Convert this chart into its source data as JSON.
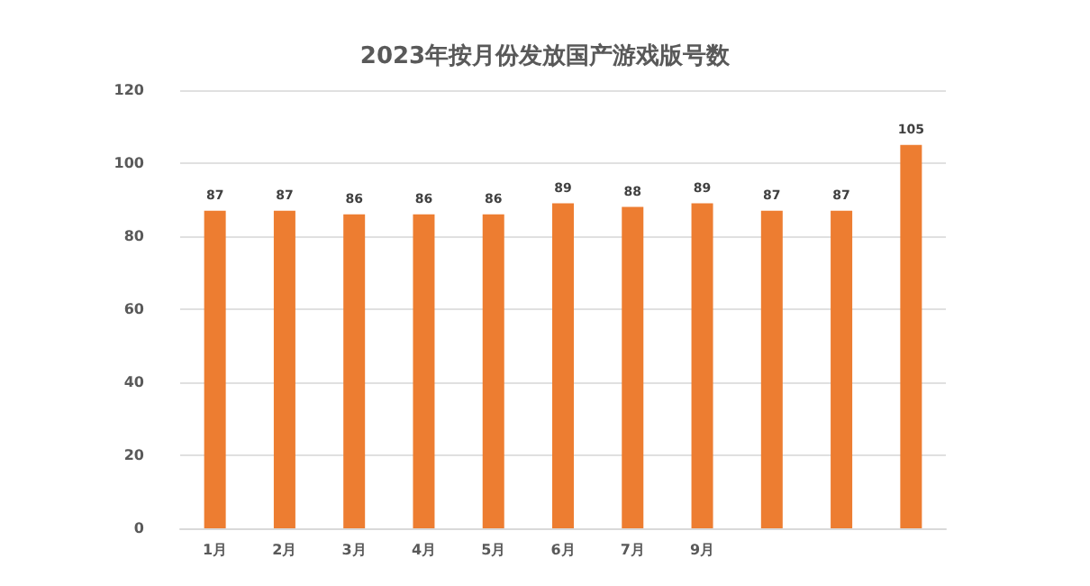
{
  "chart_data": {
    "type": "bar",
    "title": "2023年按月份发放国产游戏版号数",
    "categories": [
      "1月",
      "2月",
      "3月",
      "4月",
      "5月",
      "6月",
      "7月",
      "9月",
      null,
      null,
      null
    ],
    "values": [
      87,
      87,
      86,
      86,
      86,
      89,
      88,
      89,
      87,
      87,
      105
    ],
    "color": "#ed7d31",
    "ylim": [
      0,
      120
    ],
    "yticks": [
      0,
      20,
      40,
      60,
      80,
      100,
      120
    ],
    "grid": "y",
    "data_labels": true
  }
}
